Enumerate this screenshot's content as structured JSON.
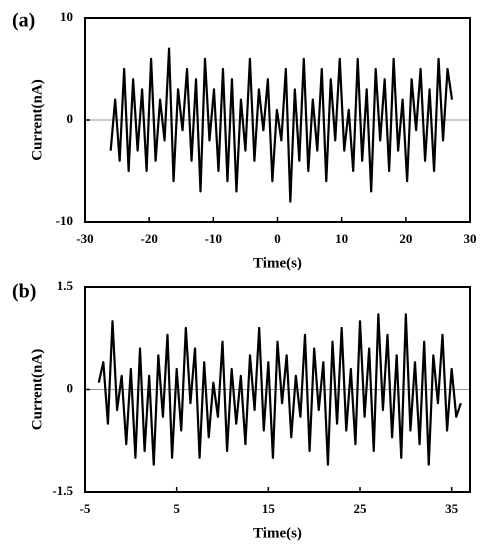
{
  "chart_data": [
    {
      "type": "line",
      "label": "(a)",
      "xlabel": "Time(s)",
      "ylabel": "Current(nA)",
      "color": "#000000",
      "xlim": [
        -30,
        30
      ],
      "ylim": [
        -10,
        10
      ],
      "xticks": [
        -30,
        -20,
        -10,
        0,
        10,
        20,
        30
      ],
      "yticks": [
        -10,
        0,
        10
      ],
      "zero_line": true,
      "x": [
        -26,
        -25.3,
        -24.6,
        -23.9,
        -23.2,
        -22.5,
        -21.8,
        -21.1,
        -20.4,
        -19.7,
        -19,
        -18.3,
        -17.6,
        -16.9,
        -16.2,
        -15.5,
        -14.8,
        -14.1,
        -13.4,
        -12.7,
        -12,
        -11.3,
        -10.6,
        -9.9,
        -9.2,
        -8.5,
        -7.8,
        -7.1,
        -6.4,
        -5.7,
        -5,
        -4.3,
        -3.6,
        -2.9,
        -2.2,
        -1.5,
        -0.8,
        -0.1,
        0.6,
        1.3,
        2,
        2.7,
        3.4,
        4.1,
        4.8,
        5.5,
        6.2,
        6.9,
        7.6,
        8.3,
        9,
        9.7,
        10.4,
        11.1,
        11.8,
        12.5,
        13.2,
        13.9,
        14.6,
        15.3,
        16,
        16.7,
        17.4,
        18.1,
        18.8,
        19.5,
        20.2,
        20.9,
        21.6,
        22.3,
        23,
        23.7,
        24.4,
        25.1,
        25.8,
        26.5,
        27.2
      ],
      "values": [
        -3,
        2,
        -4,
        5,
        -5,
        4,
        -3,
        3,
        -5,
        6,
        -4,
        2,
        -2,
        7,
        -6,
        3,
        -1,
        5,
        -4,
        4,
        -7,
        6,
        -2,
        3,
        -5,
        5,
        -6,
        4,
        -7,
        2,
        -3,
        6,
        -4,
        3,
        -1,
        4,
        -6,
        1,
        -2,
        5,
        -8,
        3,
        -4,
        6,
        -5,
        2,
        -3,
        5,
        -6,
        4,
        -2,
        6,
        -3,
        1,
        -5,
        6,
        -4,
        3,
        -7,
        5,
        -2,
        4,
        -5,
        6,
        -3,
        2,
        -6,
        4,
        -1,
        5,
        -4,
        3,
        -5,
        6,
        -2,
        5,
        2
      ]
    },
    {
      "type": "line",
      "label": "(b)",
      "xlabel": "Time(s)",
      "ylabel": "Current(nA)",
      "color": "#000000",
      "xlim": [
        -5,
        37
      ],
      "ylim": [
        -1.5,
        1.5
      ],
      "xticks": [
        -5,
        5,
        15,
        25,
        35
      ],
      "yticks": [
        -1.5,
        0,
        1.5
      ],
      "zero_line": true,
      "x": [
        -3.5,
        -3,
        -2.5,
        -2,
        -1.5,
        -1,
        -0.5,
        0,
        0.5,
        1,
        1.5,
        2,
        2.5,
        3,
        3.5,
        4,
        4.5,
        5,
        5.5,
        6,
        6.5,
        7,
        7.5,
        8,
        8.5,
        9,
        9.5,
        10,
        10.5,
        11,
        11.5,
        12,
        12.5,
        13,
        13.5,
        14,
        14.5,
        15,
        15.5,
        16,
        16.5,
        17,
        17.5,
        18,
        18.5,
        19,
        19.5,
        20,
        20.5,
        21,
        21.5,
        22,
        22.5,
        23,
        23.5,
        24,
        24.5,
        25,
        25.5,
        26,
        26.5,
        27,
        27.5,
        28,
        28.5,
        29,
        29.5,
        30,
        30.5,
        31,
        31.5,
        32,
        32.5,
        33,
        33.5,
        34,
        34.5,
        35,
        35.5,
        36
      ],
      "values": [
        0.1,
        0.4,
        -0.5,
        1.0,
        -0.3,
        0.2,
        -0.8,
        0.3,
        -1.0,
        0.6,
        -0.9,
        0.2,
        -1.1,
        0.5,
        -0.4,
        0.8,
        -1.0,
        0.3,
        -0.6,
        0.9,
        -0.2,
        0.6,
        -1.0,
        0.4,
        -0.7,
        0.1,
        -0.4,
        0.7,
        -0.9,
        0.3,
        -0.5,
        0.2,
        -0.8,
        0.5,
        -0.3,
        0.9,
        -0.6,
        0.4,
        -1.0,
        0.7,
        -0.2,
        0.5,
        -0.7,
        0.2,
        -0.4,
        0.8,
        -0.9,
        0.6,
        -0.3,
        0.4,
        -1.1,
        0.7,
        -0.5,
        0.9,
        -0.6,
        0.3,
        -0.8,
        1.0,
        -0.4,
        0.6,
        -0.9,
        1.1,
        -0.3,
        0.8,
        -0.7,
        0.5,
        -1.0,
        1.1,
        -0.6,
        0.4,
        -0.8,
        0.7,
        -1.1,
        0.5,
        -0.2,
        0.8,
        -0.6,
        0.3,
        -0.4,
        -0.2
      ]
    }
  ]
}
